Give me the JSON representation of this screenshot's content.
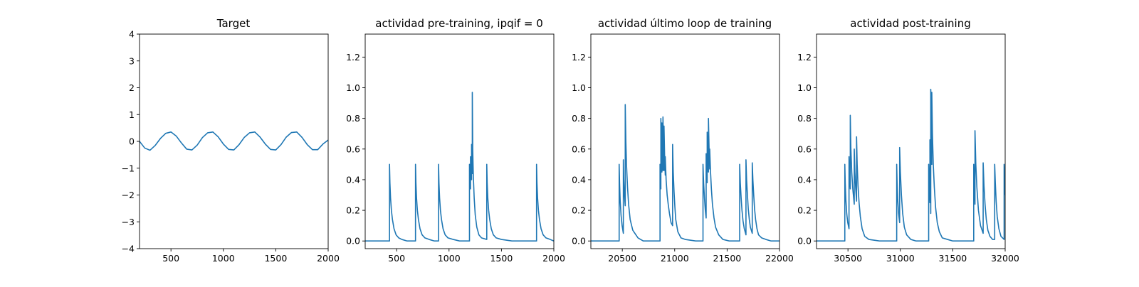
{
  "chart_data": [
    {
      "type": "line",
      "title": "Target",
      "xlabel": "",
      "ylabel": "",
      "xlim": [
        200,
        2000
      ],
      "ylim": [
        -4,
        4
      ],
      "xticks": [
        500,
        1000,
        1500,
        2000
      ],
      "yticks": [
        -4,
        -3,
        -2,
        -1,
        0,
        1,
        2,
        3,
        4
      ],
      "series": [
        {
          "color": "#1f77b4",
          "x": [
            200,
            250,
            300,
            350,
            400,
            450,
            500,
            550,
            600,
            650,
            700,
            750,
            800,
            850,
            900,
            950,
            1000,
            1050,
            1100,
            1150,
            1200,
            1250,
            1300,
            1350,
            1400,
            1450,
            1500,
            1550,
            1600,
            1650,
            1700,
            1750,
            1800,
            1850,
            1900,
            1950,
            2000
          ],
          "y": [
            0.0,
            -0.25,
            -0.33,
            -0.15,
            0.11,
            0.3,
            0.35,
            0.2,
            -0.06,
            -0.29,
            -0.32,
            -0.14,
            0.14,
            0.32,
            0.35,
            0.17,
            -0.1,
            -0.3,
            -0.32,
            -0.12,
            0.15,
            0.32,
            0.35,
            0.16,
            -0.1,
            -0.3,
            -0.32,
            -0.12,
            0.16,
            0.33,
            0.35,
            0.15,
            -0.12,
            -0.31,
            -0.31,
            -0.1,
            0.05
          ]
        }
      ]
    },
    {
      "type": "line",
      "title": "actividad pre-training, ipqif = 0",
      "xlabel": "",
      "ylabel": "",
      "xlim": [
        200,
        2000
      ],
      "ylim": [
        -0.05,
        1.35
      ],
      "xticks": [
        500,
        1000,
        1500,
        2000
      ],
      "yticks": [
        0.0,
        0.2,
        0.4,
        0.6,
        0.8,
        1.0,
        1.2
      ],
      "series": [
        {
          "color": "#1f77b4",
          "x": [
            200,
            432,
            432,
            436,
            442,
            450,
            460,
            475,
            495,
            520,
            550,
            600,
            680,
            680,
            684,
            690,
            698,
            708,
            723,
            743,
            770,
            810,
            860,
            900,
            900,
            904,
            910,
            918,
            928,
            943,
            963,
            990,
            1040,
            1100,
            1195,
            1195,
            1200,
            1205,
            1205,
            1212,
            1215,
            1215,
            1220,
            1222,
            1222,
            1226,
            1232,
            1240,
            1250,
            1265,
            1285,
            1310,
            1360,
            1360,
            1364,
            1370,
            1378,
            1388,
            1403,
            1423,
            1450,
            1500,
            1600,
            1700,
            1835,
            1835,
            1839,
            1845,
            1853,
            1863,
            1878,
            1898,
            1925,
            1965,
            2000
          ],
          "y": [
            0.0,
            0.0,
            0.5,
            0.38,
            0.28,
            0.2,
            0.14,
            0.08,
            0.04,
            0.02,
            0.01,
            0.0,
            0.0,
            0.5,
            0.38,
            0.28,
            0.2,
            0.14,
            0.08,
            0.04,
            0.02,
            0.01,
            0.0,
            0.0,
            0.5,
            0.38,
            0.28,
            0.2,
            0.14,
            0.08,
            0.04,
            0.02,
            0.01,
            0.0,
            0.0,
            0.5,
            0.4,
            0.34,
            0.55,
            0.45,
            0.4,
            0.63,
            0.5,
            0.44,
            0.97,
            0.6,
            0.42,
            0.28,
            0.17,
            0.09,
            0.04,
            0.02,
            0.01,
            0.5,
            0.38,
            0.28,
            0.2,
            0.14,
            0.08,
            0.04,
            0.02,
            0.01,
            0.0,
            0.0,
            0.0,
            0.5,
            0.38,
            0.28,
            0.2,
            0.14,
            0.08,
            0.04,
            0.02,
            0.01,
            0.0
          ]
        }
      ]
    },
    {
      "type": "line",
      "title": "actividad último loop de training",
      "xlabel": "",
      "ylabel": "",
      "xlim": [
        20200,
        22000
      ],
      "ylim": [
        -0.05,
        1.35
      ],
      "xticks": [
        20500,
        21000,
        21500,
        22000
      ],
      "yticks": [
        0.0,
        0.2,
        0.4,
        0.6,
        0.8,
        1.0,
        1.2
      ],
      "series": [
        {
          "color": "#1f77b4",
          "x": [
            20200,
            20470,
            20470,
            20474,
            20480,
            20488,
            20498,
            20510,
            20510,
            20514,
            20520,
            20528,
            20528,
            20534,
            20540,
            20550,
            20560,
            20575,
            20600,
            20650,
            20700,
            20860,
            20860,
            20864,
            20868,
            20868,
            20874,
            20878,
            20878,
            20884,
            20888,
            20888,
            20894,
            20898,
            20898,
            20904,
            20910,
            20910,
            20918,
            20928,
            20938,
            20950,
            20965,
            20980,
            20980,
            20986,
            20994,
            21002,
            21010,
            21030,
            21060,
            21100,
            21200,
            21270,
            21270,
            21276,
            21284,
            21292,
            21300,
            21300,
            21305,
            21310,
            21310,
            21316,
            21322,
            21322,
            21328,
            21334,
            21334,
            21342,
            21350,
            21360,
            21375,
            21390,
            21420,
            21460,
            21520,
            21620,
            21620,
            21626,
            21634,
            21642,
            21652,
            21664,
            21680,
            21680,
            21686,
            21694,
            21702,
            21712,
            21722,
            21740,
            21740,
            21746,
            21754,
            21762,
            21772,
            21785,
            21800,
            21830,
            21870,
            21920,
            22000
          ],
          "y": [
            0.0,
            0.0,
            0.5,
            0.38,
            0.26,
            0.17,
            0.1,
            0.05,
            0.53,
            0.4,
            0.3,
            0.23,
            0.89,
            0.65,
            0.5,
            0.35,
            0.24,
            0.14,
            0.07,
            0.02,
            0.0,
            0.0,
            0.5,
            0.4,
            0.34,
            0.8,
            0.55,
            0.45,
            0.77,
            0.55,
            0.46,
            0.81,
            0.58,
            0.46,
            0.75,
            0.55,
            0.43,
            0.55,
            0.4,
            0.3,
            0.24,
            0.18,
            0.12,
            0.1,
            0.63,
            0.45,
            0.32,
            0.22,
            0.14,
            0.06,
            0.02,
            0.01,
            0.0,
            0.0,
            0.5,
            0.38,
            0.28,
            0.2,
            0.15,
            0.57,
            0.45,
            0.38,
            0.71,
            0.55,
            0.45,
            0.8,
            0.6,
            0.47,
            0.6,
            0.45,
            0.34,
            0.24,
            0.15,
            0.09,
            0.04,
            0.01,
            0.0,
            0.0,
            0.5,
            0.38,
            0.28,
            0.2,
            0.13,
            0.08,
            0.04,
            0.53,
            0.4,
            0.3,
            0.21,
            0.14,
            0.09,
            0.05,
            0.51,
            0.4,
            0.3,
            0.21,
            0.14,
            0.08,
            0.04,
            0.02,
            0.01,
            0.0,
            0.0
          ]
        }
      ]
    },
    {
      "type": "line",
      "title": "actividad post-training",
      "xlabel": "",
      "ylabel": "",
      "xlim": [
        30200,
        32000
      ],
      "ylim": [
        -0.05,
        1.35
      ],
      "xticks": [
        30500,
        31000,
        31500,
        32000
      ],
      "yticks": [
        0.0,
        0.2,
        0.4,
        0.6,
        0.8,
        1.0,
        1.2
      ],
      "series": [
        {
          "color": "#1f77b4",
          "x": [
            30200,
            30470,
            30470,
            30474,
            30480,
            30488,
            30498,
            30510,
            30510,
            30516,
            30522,
            30522,
            30528,
            30536,
            30546,
            30560,
            30560,
            30566,
            30574,
            30582,
            30582,
            30588,
            30596,
            30606,
            30618,
            30635,
            30660,
            30700,
            30800,
            30965,
            30965,
            30969,
            30975,
            30983,
            30993,
            30993,
            31000,
            31010,
            31022,
            31038,
            31060,
            31100,
            31150,
            31270,
            31270,
            31276,
            31282,
            31282,
            31288,
            31290,
            31290,
            31296,
            31300,
            31300,
            31306,
            31314,
            31324,
            31336,
            31352,
            31372,
            31400,
            31450,
            31500,
            31700,
            31700,
            31706,
            31712,
            31712,
            31720,
            31730,
            31745,
            31765,
            31790,
            31790,
            31798,
            31808,
            31820,
            31835,
            31855,
            31880,
            31900,
            31900,
            31906,
            31914,
            31924,
            31940,
            31960,
            31990,
            31990,
            31995,
            32000
          ],
          "y": [
            0.0,
            0.0,
            0.5,
            0.38,
            0.27,
            0.18,
            0.12,
            0.08,
            0.55,
            0.42,
            0.34,
            0.82,
            0.6,
            0.45,
            0.34,
            0.24,
            0.6,
            0.45,
            0.34,
            0.26,
            0.68,
            0.5,
            0.36,
            0.25,
            0.16,
            0.08,
            0.03,
            0.01,
            0.0,
            0.0,
            0.5,
            0.38,
            0.27,
            0.18,
            0.12,
            0.61,
            0.45,
            0.3,
            0.18,
            0.09,
            0.04,
            0.01,
            0.0,
            0.0,
            0.5,
            0.35,
            0.25,
            0.66,
            0.42,
            0.18,
            0.99,
            0.7,
            0.5,
            0.97,
            0.7,
            0.5,
            0.35,
            0.22,
            0.12,
            0.06,
            0.02,
            0.01,
            0.0,
            0.0,
            0.5,
            0.38,
            0.24,
            0.72,
            0.5,
            0.35,
            0.2,
            0.1,
            0.05,
            0.51,
            0.36,
            0.24,
            0.14,
            0.07,
            0.03,
            0.01,
            0.01,
            0.5,
            0.38,
            0.26,
            0.16,
            0.08,
            0.03,
            0.01,
            0.5,
            0.42,
            0.3
          ]
        }
      ]
    }
  ]
}
